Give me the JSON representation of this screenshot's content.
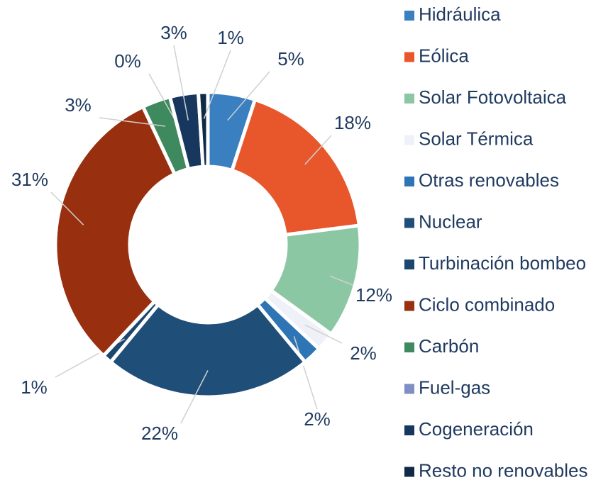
{
  "chart_data": {
    "type": "pie",
    "categories": [
      "Hidráulica",
      "Eólica",
      "Solar Fotovoltaica",
      "Solar Térmica",
      "Otras renovables",
      "Nuclear",
      "Turbinación bombeo",
      "Ciclo combinado",
      "Carbón",
      "Fuel-gas",
      "Cogeneración",
      "Resto no renovables"
    ],
    "values": [
      5,
      18,
      12,
      2,
      2,
      22,
      1,
      31,
      3,
      0,
      3,
      1
    ],
    "value_labels": [
      "5%",
      "18%",
      "12%",
      "2%",
      "2%",
      "22%",
      "1%",
      "31%",
      "3%",
      "0%",
      "3%",
      "1%"
    ],
    "colors": [
      "#3a7fc0",
      "#e8572b",
      "#8cc7a3",
      "#eef2f8",
      "#2e75b6",
      "#1f4e79",
      "#1b466e",
      "#98300f",
      "#3e8a5e",
      "#7f8fc4",
      "#17375e",
      "#0f2a47"
    ],
    "legend": "right"
  }
}
